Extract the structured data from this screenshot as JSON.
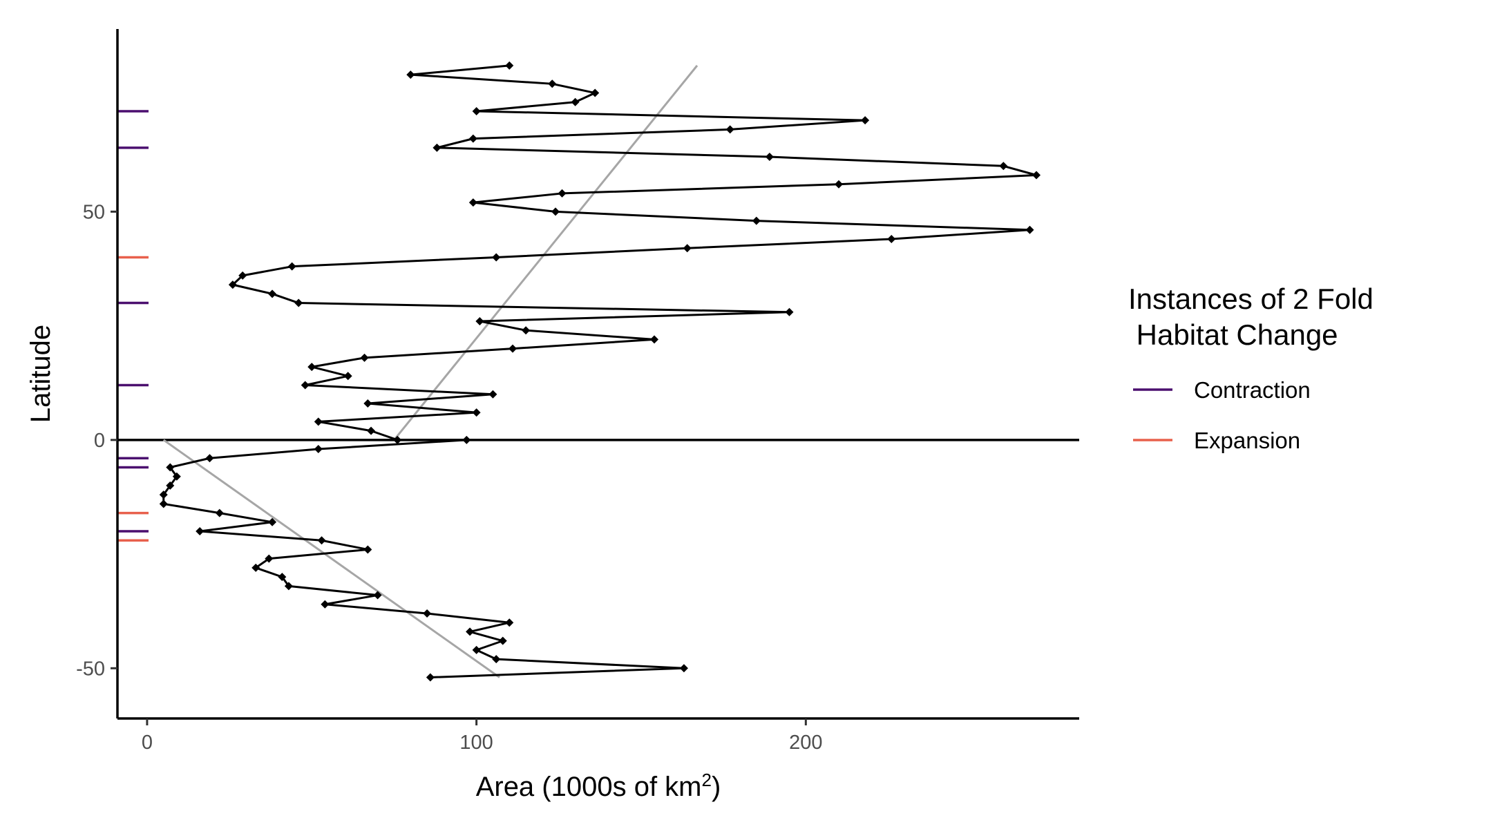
{
  "chart_data": {
    "type": "line",
    "xlabel_main": "Area (1000s of km",
    "xlabel_sup": "2",
    "xlabel_end": ")",
    "ylabel": "Latitude",
    "xlim": [
      -9,
      283
    ],
    "ylim": [
      -61,
      90
    ],
    "x_ticks": [
      0,
      100,
      200
    ],
    "x_tick_labels": [
      "0",
      "100",
      "200"
    ],
    "y_ticks": [
      -50,
      0,
      50
    ],
    "y_tick_labels": [
      "-50",
      "0",
      "50"
    ],
    "zero_line": 0,
    "series": [
      {
        "style": "black line with diamond markers",
        "points": [
          {
            "lat": 82,
            "area": 110
          },
          {
            "lat": 80,
            "area": 80
          },
          {
            "lat": 78,
            "area": 123
          },
          {
            "lat": 76,
            "area": 136
          },
          {
            "lat": 74,
            "area": 130
          },
          {
            "lat": 72,
            "area": 100
          },
          {
            "lat": 70,
            "area": 218
          },
          {
            "lat": 68,
            "area": 177
          },
          {
            "lat": 66,
            "area": 99
          },
          {
            "lat": 64,
            "area": 88
          },
          {
            "lat": 62,
            "area": 189
          },
          {
            "lat": 60,
            "area": 260
          },
          {
            "lat": 58,
            "area": 270
          },
          {
            "lat": 56,
            "area": 210
          },
          {
            "lat": 54,
            "area": 126
          },
          {
            "lat": 52,
            "area": 99
          },
          {
            "lat": 50,
            "area": 124
          },
          {
            "lat": 48,
            "area": 185
          },
          {
            "lat": 46,
            "area": 268
          },
          {
            "lat": 44,
            "area": 226
          },
          {
            "lat": 42,
            "area": 164
          },
          {
            "lat": 40,
            "area": 106
          },
          {
            "lat": 38,
            "area": 44
          },
          {
            "lat": 36,
            "area": 29
          },
          {
            "lat": 34,
            "area": 26
          },
          {
            "lat": 32,
            "area": 38
          },
          {
            "lat": 30,
            "area": 46
          },
          {
            "lat": 28,
            "area": 195
          },
          {
            "lat": 26,
            "area": 101
          },
          {
            "lat": 24,
            "area": 115
          },
          {
            "lat": 22,
            "area": 154
          },
          {
            "lat": 20,
            "area": 111
          },
          {
            "lat": 18,
            "area": 66
          },
          {
            "lat": 16,
            "area": 50
          },
          {
            "lat": 14,
            "area": 61
          },
          {
            "lat": 12,
            "area": 48
          },
          {
            "lat": 10,
            "area": 105
          },
          {
            "lat": 8,
            "area": 67
          },
          {
            "lat": 6,
            "area": 100
          },
          {
            "lat": 4,
            "area": 52
          },
          {
            "lat": 2,
            "area": 68
          },
          {
            "lat": 0,
            "area": 76
          },
          {
            "lat": 0,
            "area": 97
          },
          {
            "lat": -2,
            "area": 52
          },
          {
            "lat": -4,
            "area": 19
          },
          {
            "lat": -6,
            "area": 7
          },
          {
            "lat": -8,
            "area": 9
          },
          {
            "lat": -10,
            "area": 7
          },
          {
            "lat": -12,
            "area": 5
          },
          {
            "lat": -14,
            "area": 5
          },
          {
            "lat": -16,
            "area": 22
          },
          {
            "lat": -18,
            "area": 38
          },
          {
            "lat": -20,
            "area": 16
          },
          {
            "lat": -22,
            "area": 53
          },
          {
            "lat": -24,
            "area": 67
          },
          {
            "lat": -26,
            "area": 37
          },
          {
            "lat": -28,
            "area": 33
          },
          {
            "lat": -30,
            "area": 41
          },
          {
            "lat": -32,
            "area": 43
          },
          {
            "lat": -34,
            "area": 70
          },
          {
            "lat": -36,
            "area": 54
          },
          {
            "lat": -38,
            "area": 85
          },
          {
            "lat": -40,
            "area": 110
          },
          {
            "lat": -42,
            "area": 98
          },
          {
            "lat": -44,
            "area": 108
          },
          {
            "lat": -46,
            "area": 100
          },
          {
            "lat": -48,
            "area": 106
          },
          {
            "lat": -50,
            "area": 163
          },
          {
            "lat": -52,
            "area": 86
          }
        ]
      }
    ],
    "trend_lines": [
      {
        "from": {
          "lat": 0,
          "area": 75
        },
        "to": {
          "lat": 82,
          "area": 167
        }
      },
      {
        "from": {
          "lat": 0,
          "area": 5
        },
        "to": {
          "lat": -52,
          "area": 107
        }
      }
    ],
    "rug_marks": [
      {
        "lat": 72,
        "kind": "Contraction"
      },
      {
        "lat": 64,
        "kind": "Contraction"
      },
      {
        "lat": 40,
        "kind": "Expansion"
      },
      {
        "lat": 30,
        "kind": "Contraction"
      },
      {
        "lat": 12,
        "kind": "Contraction"
      },
      {
        "lat": -4,
        "kind": "Contraction"
      },
      {
        "lat": -6,
        "kind": "Contraction"
      },
      {
        "lat": -16,
        "kind": "Expansion"
      },
      {
        "lat": -20,
        "kind": "Contraction"
      },
      {
        "lat": -22,
        "kind": "Expansion"
      }
    ],
    "colors": {
      "series": "#000000",
      "trend": "#a6a6a6",
      "contraction": "#4b0f6f",
      "expansion": "#e8604c"
    },
    "legend": {
      "title_line1": "Instances of 2 Fold",
      "title_line2": " Habitat Change",
      "position": "right",
      "entries": [
        {
          "label": "Contraction",
          "color": "#4b0f6f"
        },
        {
          "label": "Expansion",
          "color": "#e8604c"
        }
      ]
    }
  }
}
